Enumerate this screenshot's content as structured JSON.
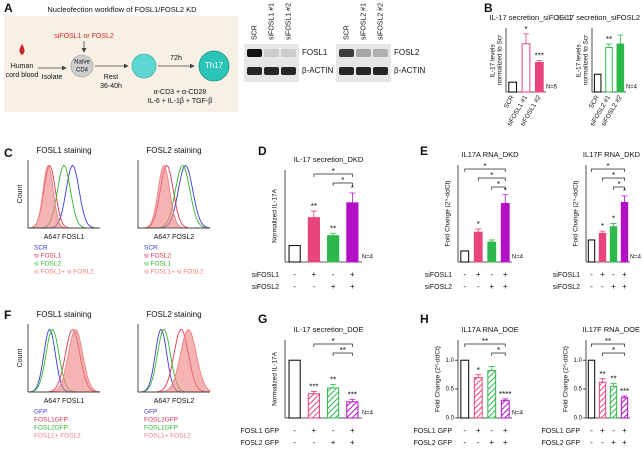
{
  "panel_letters": [
    "A",
    "B",
    "C",
    "D",
    "E",
    "F",
    "G",
    "H"
  ],
  "workflow": {
    "title": "Nucleofection workflow of FOSL1/FOSL2 KD",
    "sirna": "siFOSL1 or FOSL2",
    "source": [
      "Human",
      "cord blood"
    ],
    "isolate": "Isolate",
    "naive": [
      "Naïve",
      "CD4"
    ],
    "rest": [
      "Rest",
      "36-40h"
    ],
    "duration": "72h",
    "product": "Th17",
    "stimulation": [
      "α-CD3 + α-CD28",
      "IL-6 + IL-1β + TGF-β"
    ]
  },
  "blots": [
    {
      "lanes": [
        "SCR",
        "siFOSL1 #1",
        "siFOSL1 #2"
      ],
      "rows": [
        "FOSL1",
        "β-ACTIN"
      ]
    },
    {
      "lanes": [
        "SCR",
        "siFOSL2 #1",
        "siFOSL2 #2"
      ],
      "rows": [
        "FOSL2",
        "β-ACTIN"
      ]
    }
  ],
  "flow": [
    {
      "title": "FOSL1 staining",
      "ylabel": "Count",
      "xlabel": "A647 FOSL1",
      "legend": [
        {
          "name": "SCR",
          "color": "#3a3ad6"
        },
        {
          "name": "si FOSL1",
          "color": "#e0334f"
        },
        {
          "name": "si FOSL2",
          "color": "#2eb82e"
        },
        {
          "name": "si FOSL1+ si FOSL2",
          "color": "#f08080"
        }
      ]
    },
    {
      "title": "FOSL2 staining",
      "xlabel": "A647 FOSL2",
      "legend": [
        {
          "name": "SCR",
          "color": "#3a3ad6"
        },
        {
          "name": "si FOSL2",
          "color": "#e0334f"
        },
        {
          "name": "si FOSL1",
          "color": "#2eb82e"
        },
        {
          "name": "si FOSL1+ si FOSL2",
          "color": "#f08080"
        }
      ]
    },
    {
      "title": "FOSL1 staining",
      "ylabel": "Count",
      "xlabel": "A647 FOSL1",
      "legend": [
        {
          "name": "GFP",
          "color": "#3a3ad6"
        },
        {
          "name": "FOSL1GFP",
          "color": "#e0334f"
        },
        {
          "name": "FOSL2GFP",
          "color": "#2eb82e"
        },
        {
          "name": "FOSL1+ FOSL2",
          "color": "#f08080"
        }
      ]
    },
    {
      "title": "FOSL2 staining",
      "xlabel": "A647 FOSL2",
      "legend": [
        {
          "name": "GFP",
          "color": "#3a3ad6"
        },
        {
          "name": "FOSL2GFP",
          "color": "#e0334f"
        },
        {
          "name": "FOSL1GFP",
          "color": "#2eb82e"
        },
        {
          "name": "FOSL1+ FOSL2",
          "color": "#f08080"
        }
      ]
    }
  ],
  "chart_data": [
    {
      "type": "bar",
      "title": "IL-17 secretion_siFOSL1",
      "ylabel": "IL-17 levels normalized to Scr",
      "categories": [
        "SCR",
        "siFOSL1 #1",
        "siFOSL1 #2"
      ],
      "values": [
        1,
        4.9,
        3.0
      ],
      "errors": [
        null,
        1.0,
        0.2
      ],
      "colors": [
        "#000000",
        "#e8457a",
        "#e8457a"
      ],
      "fills": [
        "outline",
        "outline",
        "solid"
      ],
      "significance": [
        null,
        "*",
        "***"
      ],
      "n_label": "N=5",
      "ylim": [
        0,
        6.5
      ]
    },
    {
      "type": "bar",
      "title": "IL-17 secretion_siFOSL2",
      "ylabel": "IL-17 levels normalized to Scr",
      "categories": [
        "SCR",
        "siFOSL2 #1",
        "siFOSL2 #2"
      ],
      "values": [
        1,
        2.5,
        2.7
      ],
      "errors": [
        null,
        0.2,
        0.5
      ],
      "colors": [
        "#000000",
        "#2db84b",
        "#2db84b"
      ],
      "fills": [
        "outline",
        "outline",
        "solid"
      ],
      "significance": [
        null,
        "**",
        null
      ],
      "n_label": "N=4",
      "ylim": [
        0,
        3.6
      ]
    },
    {
      "type": "bar",
      "title": "IL-17 secretion_DKD",
      "ylabel": "Normalized IL-17A",
      "conditions": [
        {
          "name": "siFOSL1",
          "signs": [
            "-",
            "+",
            "-",
            "+"
          ]
        },
        {
          "name": "siFOSL2",
          "signs": [
            "-",
            "-",
            "+",
            "+"
          ]
        }
      ],
      "values": [
        1,
        2.7,
        1.6,
        3.6
      ],
      "errors": [
        null,
        0.4,
        0.15,
        0.6
      ],
      "colors": [
        "#000000",
        "#e8457a",
        "#2db84b",
        "#b30fc6"
      ],
      "fills": [
        "outline",
        "solid",
        "solid",
        "solid"
      ],
      "significance": [
        null,
        "**",
        "**",
        "*"
      ],
      "brackets": [
        {
          "from": 1,
          "to": 3,
          "label": "*"
        },
        {
          "from": 2,
          "to": 3,
          "label": "*"
        }
      ],
      "n_label": "N=4",
      "ylim": [
        0,
        5.6
      ]
    },
    {
      "type": "bar",
      "title": "IL17A RNA_DKD",
      "ylabel": "Fold Change (2^-ddCt)",
      "conditions": [
        {
          "name": "siFOSL1",
          "signs": [
            "-",
            "+",
            "-",
            "+"
          ]
        },
        {
          "name": "siFOSL2",
          "signs": [
            "-",
            "-",
            "+",
            "+"
          ]
        }
      ],
      "values": [
        1,
        2.7,
        1.8,
        5.3
      ],
      "errors": [
        null,
        0.3,
        0.2,
        0.8
      ],
      "colors": [
        "#000000",
        "#e8457a",
        "#2db84b",
        "#b30fc6"
      ],
      "fills": [
        "outline",
        "solid",
        "solid",
        "solid"
      ],
      "significance": [
        null,
        "*",
        null,
        "*"
      ],
      "brackets": [
        {
          "from": 0,
          "to": 3,
          "label": "*"
        },
        {
          "from": 1,
          "to": 3,
          "label": "*"
        },
        {
          "from": 2,
          "to": 3,
          "label": "*"
        }
      ],
      "n_label": "N=4",
      "ylim": [
        0,
        8.8
      ]
    },
    {
      "type": "bar",
      "title": "IL17F RNA_DKD",
      "ylabel": "Fold Change (2^-ddCt)",
      "conditions": [
        {
          "name": "siFOSL1",
          "signs": [
            "-",
            "+",
            "-",
            "+"
          ]
        },
        {
          "name": "siFOSL2",
          "signs": [
            "-",
            "-",
            "+",
            "+"
          ]
        }
      ],
      "values": [
        1,
        1.3,
        1.6,
        2.7
      ],
      "errors": [
        null,
        0.1,
        0.15,
        0.3
      ],
      "colors": [
        "#000000",
        "#e8457a",
        "#2db84b",
        "#b30fc6"
      ],
      "fills": [
        "outline",
        "solid",
        "solid",
        "solid"
      ],
      "significance": [
        null,
        "*",
        "*",
        "*"
      ],
      "brackets": [
        {
          "from": 0,
          "to": 3,
          "label": "*"
        },
        {
          "from": 1,
          "to": 3,
          "label": "*"
        },
        {
          "from": 2,
          "to": 3,
          "label": "*"
        }
      ],
      "n_label": "N=4",
      "ylim": [
        0,
        4.4
      ]
    },
    {
      "type": "bar",
      "title": "IL-17 secretion_DOE",
      "ylabel": "Normalized IL-17A",
      "conditions": [
        {
          "name": "FOSL1 GFP",
          "signs": [
            "-",
            "+",
            "-",
            "+"
          ]
        },
        {
          "name": "FOSL2 GFP",
          "signs": [
            "-",
            "-",
            "+",
            "+"
          ]
        }
      ],
      "values": [
        1,
        0.42,
        0.52,
        0.28
      ],
      "errors": [
        null,
        0.04,
        0.06,
        0.04
      ],
      "colors": [
        "#000000",
        "#e8457a",
        "#2db84b",
        "#b30fc6"
      ],
      "fills": [
        "outline",
        "hatch",
        "hatch",
        "hatch"
      ],
      "significance": [
        null,
        "***",
        "**",
        "***"
      ],
      "brackets": [
        {
          "from": 1,
          "to": 3,
          "label": "*"
        },
        {
          "from": 2,
          "to": 3,
          "label": "**"
        }
      ],
      "n_label": "N=4",
      "ylim": [
        0,
        1.35
      ]
    },
    {
      "type": "bar",
      "title": "IL17A RNA_DOE",
      "ylabel": "Fold Change (2^-ddCt)",
      "conditions": [
        {
          "name": "FOSL1 GFP",
          "signs": [
            "-",
            "+",
            "-",
            "+"
          ]
        },
        {
          "name": "FOSL2 GFP",
          "signs": [
            "-",
            "-",
            "+",
            "+"
          ]
        }
      ],
      "values": [
        1,
        0.7,
        0.82,
        0.3
      ],
      "errors": [
        null,
        0.05,
        0.07,
        0.03
      ],
      "colors": [
        "#000000",
        "#e8457a",
        "#2db84b",
        "#b30fc6"
      ],
      "fills": [
        "outline",
        "hatch",
        "hatch",
        "hatch"
      ],
      "significance": [
        null,
        "*",
        null,
        "****"
      ],
      "brackets": [
        {
          "from": 0,
          "to": 3,
          "label": "**"
        },
        {
          "from": 2,
          "to": 3,
          "label": "*"
        }
      ],
      "n_label": "N=4",
      "ylim": [
        0,
        1.35
      ],
      "yticks": [
        {
          "value": 0,
          "label": "0.0"
        },
        {
          "value": 0.5,
          "label": "0.5"
        },
        {
          "value": 1,
          "label": "1.0"
        }
      ]
    },
    {
      "type": "bar",
      "title": "IL17F RNA_DOE",
      "ylabel": "Fold Change (2^-ddCt)",
      "conditions": [
        {
          "name": "FOSL1 GFP",
          "signs": [
            "-",
            "+",
            "-",
            "+"
          ]
        },
        {
          "name": "FOSL2 GFP",
          "signs": [
            "-",
            "-",
            "+",
            "+"
          ]
        }
      ],
      "values": [
        1,
        0.62,
        0.55,
        0.35
      ],
      "errors": [
        null,
        0.06,
        0.05,
        0.03
      ],
      "colors": [
        "#000000",
        "#e8457a",
        "#2db84b",
        "#b30fc6"
      ],
      "fills": [
        "outline",
        "hatch",
        "hatch",
        "hatch"
      ],
      "significance": [
        null,
        "**",
        "**",
        "***"
      ],
      "brackets": [
        {
          "from": 0,
          "to": 3,
          "label": "**"
        },
        {
          "from": 1,
          "to": 3,
          "label": "*"
        }
      ],
      "ylim": [
        0,
        1.35
      ],
      "yticks": [
        {
          "value": 0,
          "label": "0.0"
        },
        {
          "value": 0.5,
          "label": "0.5"
        },
        {
          "value": 1,
          "label": "1.0"
        }
      ]
    }
  ]
}
